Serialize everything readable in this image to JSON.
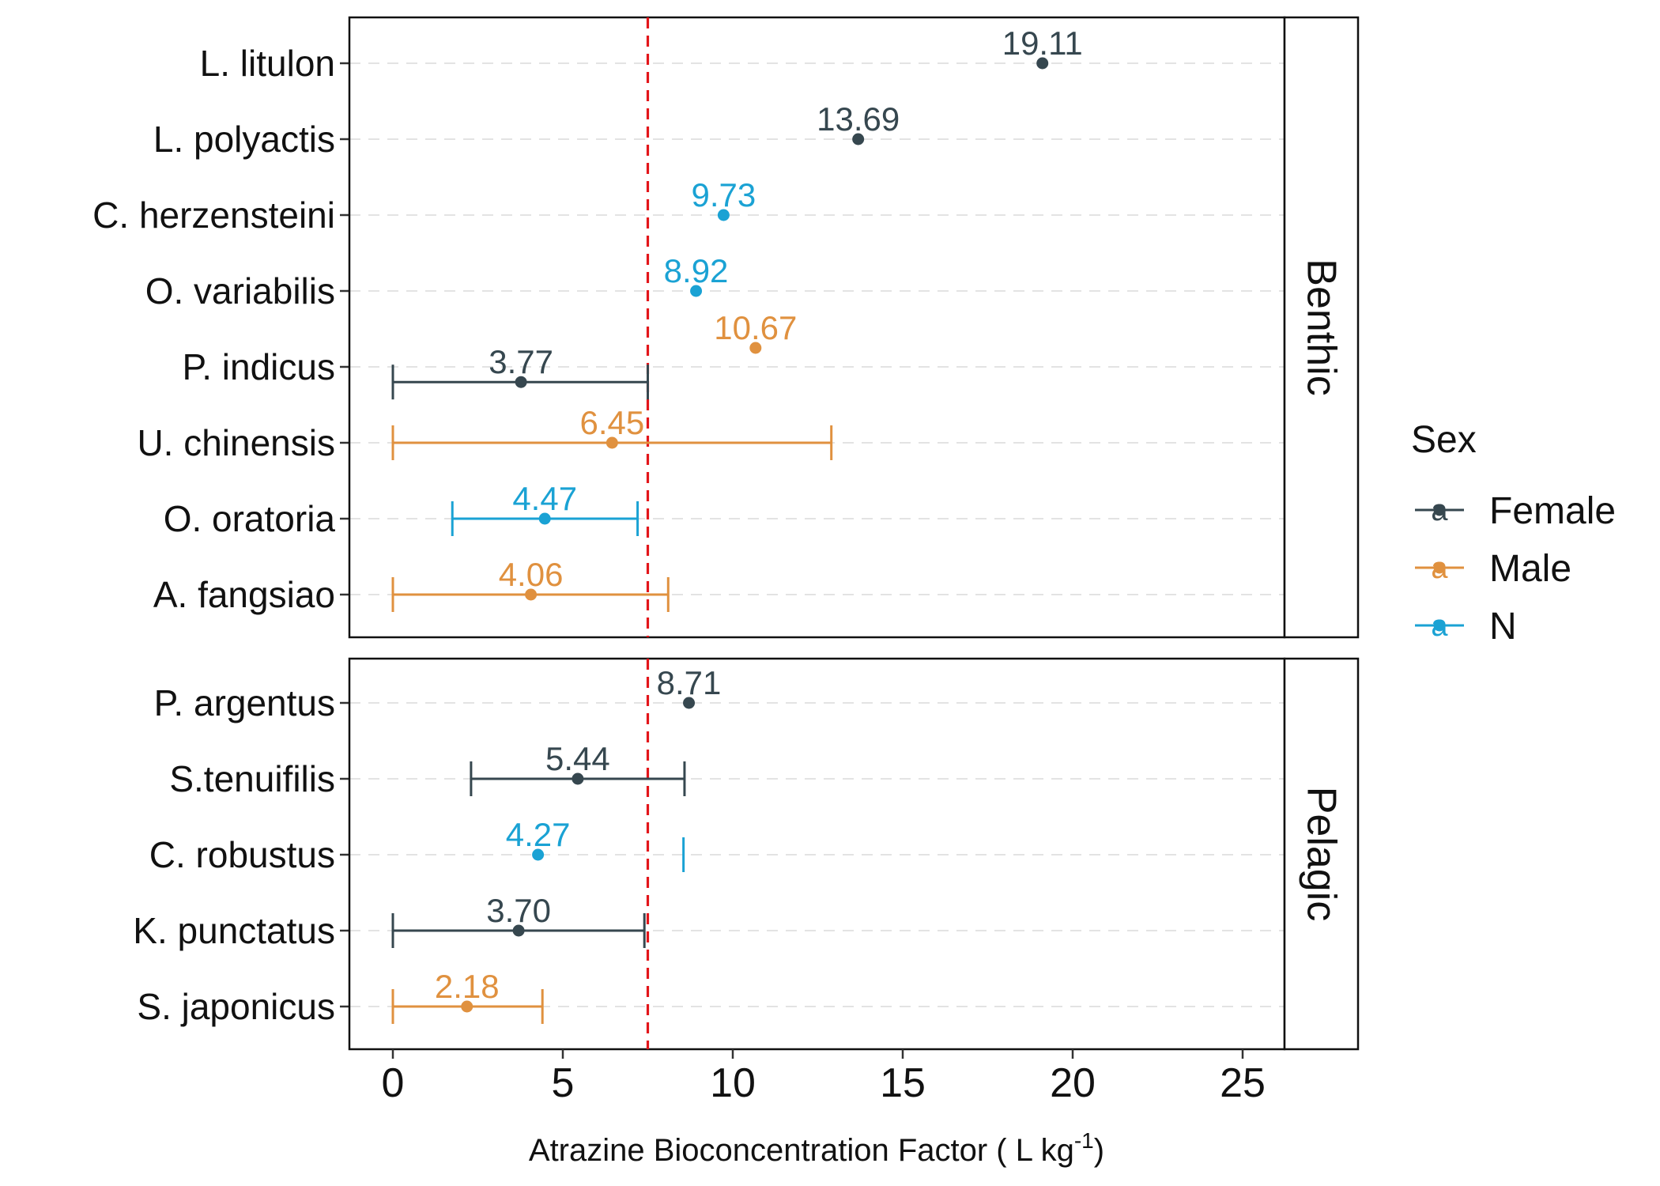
{
  "chart_data": {
    "type": "scatter",
    "title": "",
    "xlabel": "Atrazine Bioconcentration Factor ( L kg",
    "xlabel_sup": "-1",
    "xlabel_close": ")",
    "xlim": [
      -1.2,
      28.5
    ],
    "xticks": [
      "0",
      "5",
      "10",
      "15",
      "20",
      "25"
    ],
    "grid": "horizontal dashed",
    "reference_line": {
      "x": 7.5,
      "color": "#e3151a",
      "style": "dashed"
    },
    "colors": {
      "Female": "#36474f",
      "Male": "#e0913f",
      "N": "#1aa2d4"
    },
    "legend": {
      "title": "Sex",
      "entries": [
        "Female",
        "Male",
        "N"
      ],
      "glyph": "a",
      "placement": "right"
    },
    "panels": [
      {
        "name": "Benthic",
        "categories": [
          "L. litulon",
          "L. polyactis",
          "C. herzensteini",
          "O. variabilis",
          "P. indicus",
          "U. chinensis",
          "O. oratoria",
          "A. fangsiao"
        ],
        "points": [
          {
            "species": "L. litulon",
            "sex": "Female",
            "value": 19.11,
            "label": "19.11",
            "offset": 0
          },
          {
            "species": "L. polyactis",
            "sex": "Female",
            "value": 13.69,
            "label": "13.69",
            "offset": 0
          },
          {
            "species": "C. herzensteini",
            "sex": "N",
            "value": 9.73,
            "label": "9.73",
            "offset": 0
          },
          {
            "species": "O. variabilis",
            "sex": "N",
            "value": 8.92,
            "label": "8.92",
            "offset": 0
          },
          {
            "species": "P. indicus",
            "sex": "Male",
            "value": 10.67,
            "label": "10.67",
            "offset": -0.25
          },
          {
            "species": "P. indicus",
            "sex": "Female",
            "value": 3.77,
            "label": "3.77",
            "offset": 0.2,
            "low": 0,
            "high": 7.5
          },
          {
            "species": "U. chinensis",
            "sex": "Male",
            "value": 6.45,
            "label": "6.45",
            "offset": 0,
            "low": 0,
            "high": 12.9
          },
          {
            "species": "O. oratoria",
            "sex": "N",
            "value": 4.47,
            "label": "4.47",
            "offset": 0,
            "low": 1.75,
            "high": 7.2
          },
          {
            "species": "A. fangsiao",
            "sex": "Male",
            "value": 4.06,
            "label": "4.06",
            "offset": 0,
            "low": 0,
            "high": 8.1
          }
        ]
      },
      {
        "name": "Pelagic",
        "categories": [
          "P. argentus",
          "S.tenuifilis",
          "C. robustus",
          "K. punctatus",
          "S. japonicus"
        ],
        "points": [
          {
            "species": "P. argentus",
            "sex": "Female",
            "value": 8.71,
            "label": "8.71",
            "offset": 0
          },
          {
            "species": "S.tenuifilis",
            "sex": "Female",
            "value": 5.44,
            "label": "5.44",
            "offset": 0,
            "low": 2.3,
            "high": 8.58
          },
          {
            "species": "C. robustus",
            "sex": "N",
            "value": 4.27,
            "label": "4.27",
            "offset": 0,
            "cap_only": 8.55
          },
          {
            "species": "K. punctatus",
            "sex": "Female",
            "value": 3.7,
            "label": "3.70",
            "offset": 0,
            "low": 0,
            "high": 7.4
          },
          {
            "species": "S. japonicus",
            "sex": "Male",
            "value": 2.18,
            "label": "2.18",
            "offset": 0,
            "low": 0,
            "high": 4.4
          }
        ]
      }
    ]
  }
}
